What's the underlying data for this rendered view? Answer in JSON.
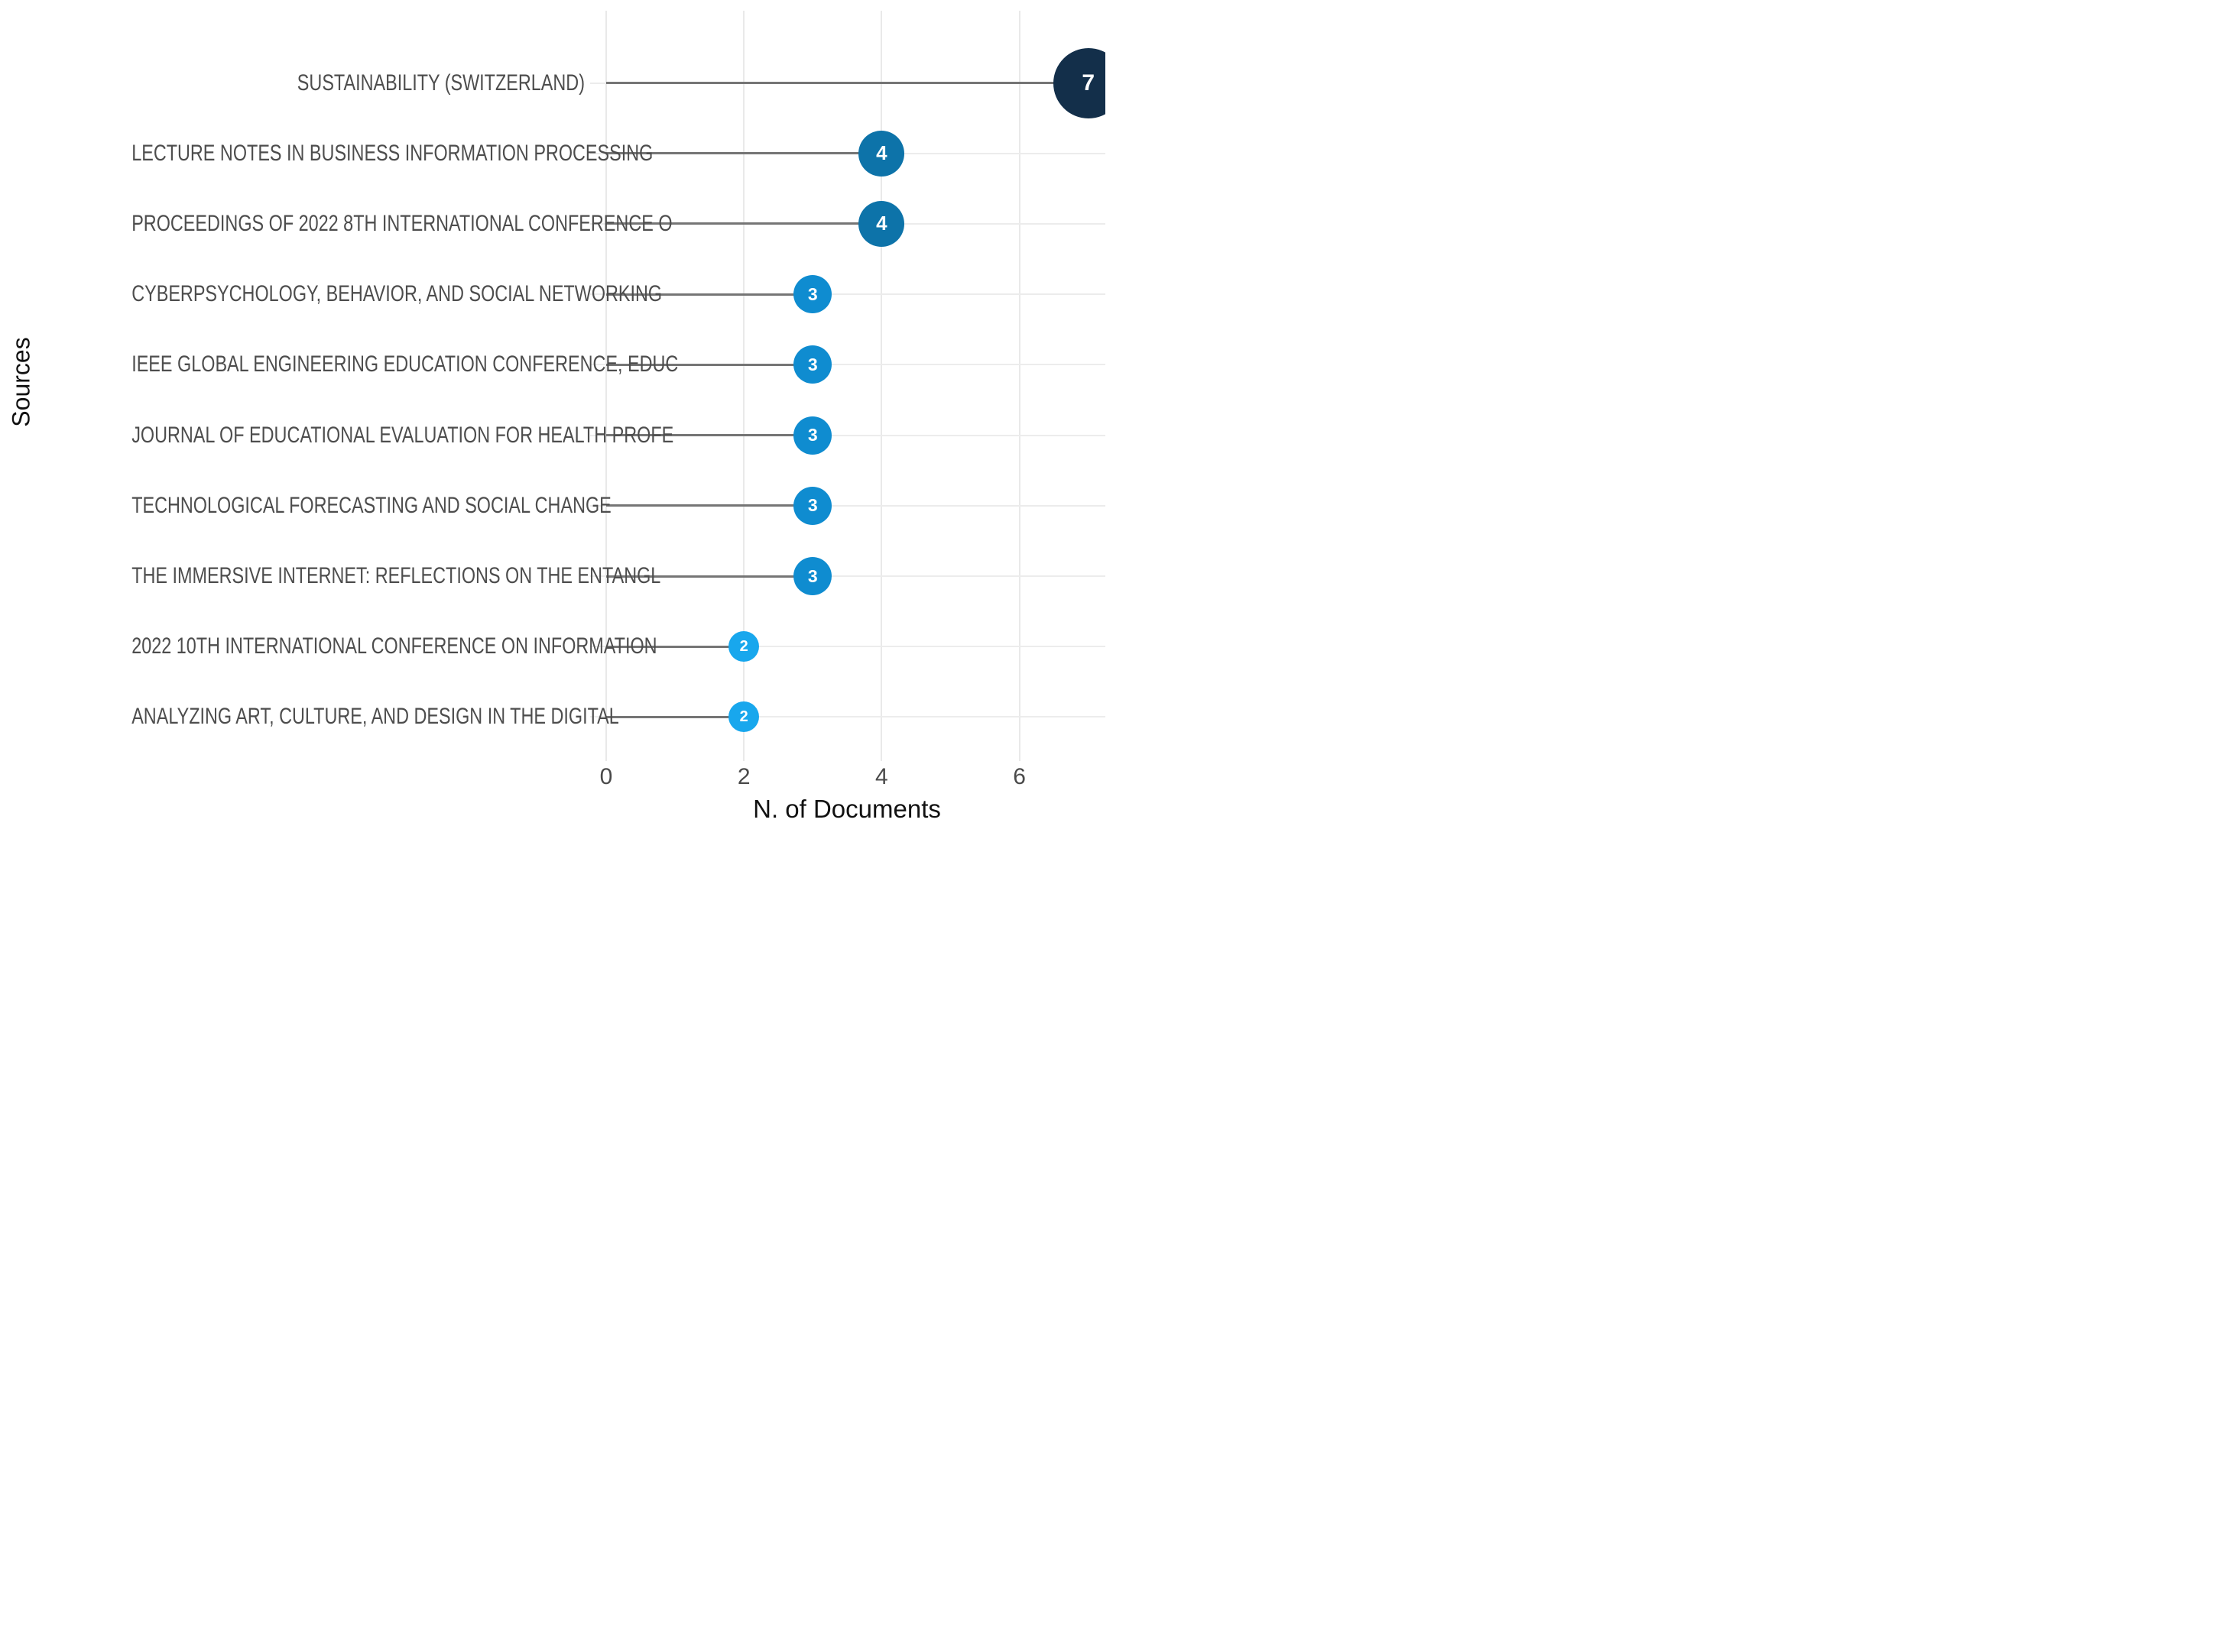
{
  "chart_data": {
    "type": "scatter",
    "variant": "horizontal-lollipop",
    "title": "",
    "xlabel": "N. of Documents",
    "ylabel": "Sources",
    "x_ticks": [
      0,
      2,
      4,
      6
    ],
    "xlim": [
      0,
      7.35
    ],
    "grid": "on",
    "legend": "none",
    "categories": [
      "SUSTAINABILITY (SWITZERLAND)",
      "LECTURE NOTES IN BUSINESS INFORMATION PROCESSING",
      "PROCEEDINGS OF 2022 8TH INTERNATIONAL CONFERENCE O",
      "CYBERPSYCHOLOGY, BEHAVIOR, AND SOCIAL NETWORKING",
      "IEEE GLOBAL ENGINEERING EDUCATION CONFERENCE, EDUC",
      "JOURNAL OF EDUCATIONAL EVALUATION FOR HEALTH PROFE",
      "TECHNOLOGICAL FORECASTING AND SOCIAL CHANGE",
      "THE IMMERSIVE INTERNET: REFLECTIONS ON THE ENTANGL",
      "2022 10TH INTERNATIONAL CONFERENCE ON INFORMATION",
      "ANALYZING ART, CULTURE, AND DESIGN IN THE DIGITAL"
    ],
    "values": [
      7,
      4,
      4,
      3,
      3,
      3,
      3,
      3,
      2,
      2
    ],
    "point_style": {
      "7": {
        "color": "#132f4a",
        "radius": 46,
        "font": 30
      },
      "4": {
        "color": "#0d73a9",
        "radius": 30,
        "font": 26
      },
      "3": {
        "color": "#0f8cd0",
        "radius": 25,
        "font": 23
      },
      "2": {
        "color": "#18a7ed",
        "radius": 20,
        "font": 20
      }
    },
    "colors": {
      "stem": "#757575",
      "gridline": "#e9e9e9",
      "category_label": "#4d4d4d",
      "tick_label": "#4a4a4a",
      "axis_title": "#111111",
      "value_text": "#ffffff",
      "background": "#ffffff"
    }
  }
}
